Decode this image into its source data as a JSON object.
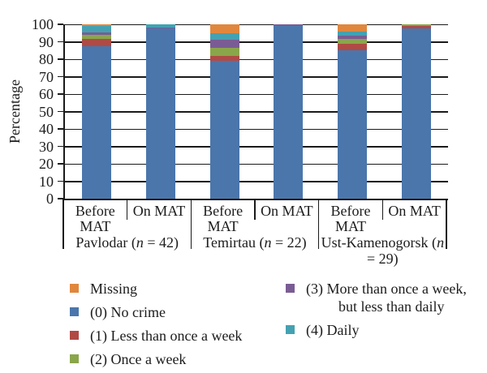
{
  "colors": {
    "axis": "#1a1a1a",
    "gridline": "#1a1a1a",
    "text": "#1c1c1c",
    "background": "#ffffff"
  },
  "chart_data": {
    "type": "bar",
    "subtype": "stacked-percentage-column",
    "ylabel": "Percentage",
    "ylim": [
      0,
      100
    ],
    "yticks": [
      0,
      10,
      20,
      30,
      40,
      50,
      60,
      70,
      80,
      90,
      100
    ],
    "grid": "horizontal, dark thin lines",
    "categories": [
      "Before MAT",
      "On MAT",
      "Before MAT",
      "On MAT",
      "Before MAT",
      "On MAT"
    ],
    "groups": [
      {
        "label_prefix": "Pavlodar (",
        "n_italic": "n",
        "label_suffix": " = 42)"
      },
      {
        "label_prefix": "Temirtau (",
        "n_italic": "n",
        "label_suffix": " = 22)"
      },
      {
        "label_prefix": "Ust-Kamenogorsk (",
        "n_italic": "n",
        "label_suffix": " = 29)"
      }
    ],
    "stack_order_bottom_to_top": [
      "(0) No crime",
      "(1) Less than once a week",
      "(2) Once a week",
      "(3) More than once a week, but less than daily",
      "(4) Daily",
      "Missing"
    ],
    "series": [
      {
        "name": "Missing",
        "color": "#E0873D",
        "values": [
          1,
          0,
          5,
          0,
          4,
          0
        ]
      },
      {
        "name": "(0) No crime",
        "color": "#4A76AC",
        "values": [
          87.5,
          97.5,
          79,
          99,
          85,
          97.5
        ]
      },
      {
        "name": "(1) Less than once a week",
        "color": "#B04A45",
        "values": [
          4,
          0,
          3,
          0,
          4,
          1.5
        ]
      },
      {
        "name": "(2) Once a week",
        "color": "#8AA64A",
        "values": [
          2.5,
          0,
          4.5,
          0,
          2.5,
          1
        ]
      },
      {
        "name": "(3) More than once a week, but less than daily",
        "color": "#7A5C94",
        "values": [
          1.5,
          0.5,
          4.5,
          1,
          2,
          0
        ]
      },
      {
        "name": "(4) Daily",
        "color": "#44A1B1",
        "values": [
          3.5,
          2,
          4,
          0,
          2.5,
          0
        ]
      }
    ]
  },
  "legend": {
    "columns": [
      {
        "items": [
          {
            "series": "Missing",
            "lines": [
              "Missing"
            ]
          },
          {
            "series": "(0) No crime",
            "lines": [
              "(0) No crime"
            ]
          },
          {
            "series": "(1) Less than once a week",
            "lines": [
              "(1) Less than once a week"
            ]
          },
          {
            "series": "(2) Once a week",
            "lines": [
              "(2) Once a week"
            ]
          }
        ]
      },
      {
        "items": [
          {
            "series": "(3) More than once a week, but less than daily",
            "lines": [
              "(3) More than once a week,",
              "but less than daily"
            ]
          },
          {
            "series": "(4) Daily",
            "lines": [
              "(4) Daily"
            ]
          }
        ]
      }
    ]
  }
}
